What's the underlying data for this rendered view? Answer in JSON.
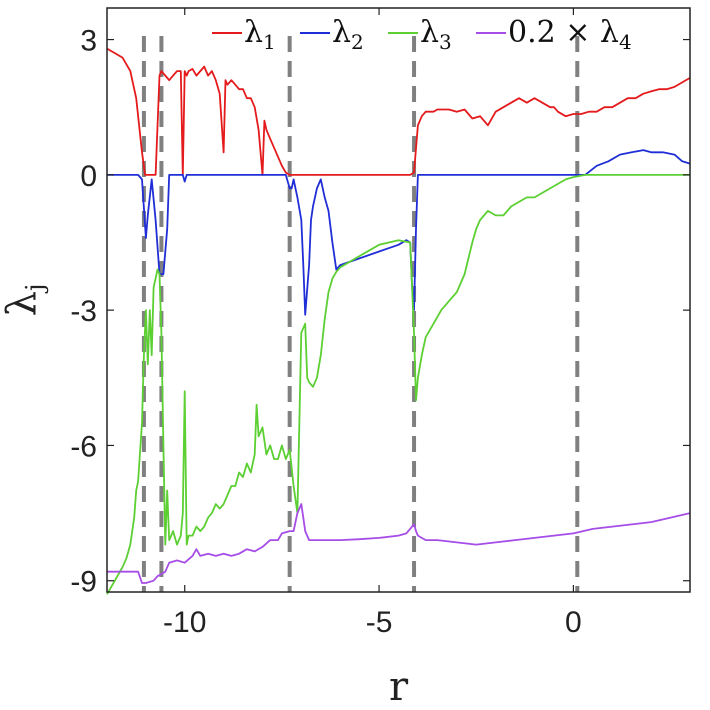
{
  "chart_data": {
    "type": "line",
    "xlabel": "r",
    "ylabel": "λ",
    "ylabel_sub": "j",
    "xlim": [
      -12,
      3
    ],
    "ylim": [
      -9.25,
      3.7
    ],
    "xticks": [
      -10,
      -5,
      0
    ],
    "xtick_labels": [
      "-10",
      "-5",
      "0"
    ],
    "yticks": [
      3,
      0,
      -3,
      -6,
      -9
    ],
    "ytick_labels": [
      "3",
      "0",
      "-3",
      "-6",
      "-9"
    ],
    "grid": false,
    "legend_position": "top",
    "vlines": [
      -11.05,
      -10.6,
      -7.3,
      -4.1,
      0.1
    ],
    "series": [
      {
        "name": "λ",
        "name_sub": "1",
        "name_prefix": "",
        "color": "#e41a1c",
        "x": [
          -12,
          -11.8,
          -11.6,
          -11.4,
          -11.25,
          -11.1,
          -11.02,
          -10.9,
          -10.75,
          -10.65,
          -10.6,
          -10.5,
          -10.4,
          -10.3,
          -10.2,
          -10.1,
          -10.05,
          -10.0,
          -9.95,
          -9.9,
          -9.8,
          -9.7,
          -9.6,
          -9.5,
          -9.4,
          -9.3,
          -9.2,
          -9.1,
          -9.0,
          -8.95,
          -8.9,
          -8.8,
          -8.7,
          -8.6,
          -8.5,
          -8.4,
          -8.3,
          -8.2,
          -8.1,
          -8.0,
          -7.95,
          -7.9,
          -7.8,
          -7.7,
          -7.6,
          -7.5,
          -7.4,
          -7.3,
          -7.25,
          -6,
          -5,
          -4.2,
          -4.1,
          -4.0,
          -3.9,
          -3.8,
          -3.7,
          -3.6,
          -3.5,
          -3.2,
          -3.0,
          -2.8,
          -2.6,
          -2.4,
          -2.2,
          -2.0,
          -1.8,
          -1.6,
          -1.4,
          -1.2,
          -1.0,
          -0.8,
          -0.6,
          -0.5,
          -0.4,
          -0.2,
          0.0,
          0.2,
          0.4,
          0.6,
          0.8,
          1.0,
          1.2,
          1.4,
          1.6,
          1.8,
          2.0,
          2.2,
          2.4,
          2.6,
          2.8,
          3.0
        ],
        "y": [
          2.8,
          2.7,
          2.6,
          2.3,
          1.7,
          0.5,
          0,
          0,
          0,
          2.2,
          2.3,
          2.2,
          2.1,
          2.2,
          2.3,
          2.3,
          0,
          2.3,
          2.2,
          2.3,
          2.35,
          2.2,
          2.3,
          2.4,
          2.2,
          2.3,
          2.1,
          1.8,
          0.5,
          2.1,
          2.0,
          2.1,
          2.0,
          1.9,
          1.9,
          1.7,
          1.7,
          1.5,
          1.0,
          0,
          1.2,
          1.0,
          0.8,
          0.6,
          0.4,
          0.2,
          0.05,
          0,
          0,
          0,
          0,
          0,
          0.05,
          1.1,
          1.3,
          1.4,
          1.4,
          1.4,
          1.45,
          1.45,
          1.4,
          1.45,
          1.25,
          1.3,
          1.1,
          1.4,
          1.5,
          1.6,
          1.7,
          1.6,
          1.7,
          1.6,
          1.5,
          1.5,
          1.4,
          1.3,
          1.35,
          1.35,
          1.4,
          1.4,
          1.5,
          1.5,
          1.6,
          1.7,
          1.7,
          1.8,
          1.85,
          1.9,
          1.9,
          1.95,
          2.05,
          2.15
        ]
      },
      {
        "name": "λ",
        "name_sub": "2",
        "name_prefix": "",
        "color": "#1f2ed6",
        "x": [
          -12,
          -11.2,
          -11.1,
          -11.0,
          -10.95,
          -10.85,
          -10.75,
          -10.65,
          -10.55,
          -10.45,
          -10.4,
          -10.2,
          -10.05,
          -10.0,
          -9.95,
          -9.8,
          -7.6,
          -7.5,
          -7.4,
          -7.3,
          -7.25,
          -7.2,
          -7.1,
          -7.0,
          -6.95,
          -6.9,
          -6.8,
          -6.75,
          -6.7,
          -6.6,
          -6.5,
          -6.4,
          -6.3,
          -6.2,
          -6.1,
          -6.0,
          -5.0,
          -4.5,
          -4.3,
          -4.2,
          -4.15,
          -4.1,
          -4.05,
          -4.0,
          0.0,
          0.3,
          0.6,
          0.9,
          1.2,
          1.5,
          1.8,
          2.0,
          2.3,
          2.6,
          2.8,
          3.0
        ],
        "y": [
          0,
          0,
          -0.1,
          -1.4,
          -0.9,
          -0.1,
          -1.0,
          -2.2,
          -2.2,
          -1.2,
          0,
          0,
          0,
          -0.15,
          0,
          0,
          0,
          0,
          0,
          -0.3,
          -0.3,
          -0.1,
          -0.5,
          -1.0,
          -2.0,
          -3.1,
          -2.0,
          -1.0,
          -0.7,
          -0.3,
          -0.1,
          -0.5,
          -0.8,
          -1.5,
          -2.1,
          -2.0,
          -1.7,
          -1.55,
          -1.45,
          -1.5,
          -2.5,
          -3.0,
          -1.2,
          0,
          0,
          0,
          0.2,
          0.3,
          0.45,
          0.5,
          0.55,
          0.5,
          0.5,
          0.45,
          0.3,
          0.25
        ]
      },
      {
        "name": "λ",
        "name_sub": "3",
        "name_prefix": "",
        "color": "#5ccf32",
        "x": [
          -12.0,
          -11.8,
          -11.6,
          -11.5,
          -11.4,
          -11.3,
          -11.25,
          -11.2,
          -11.1,
          -11.05,
          -11.0,
          -10.95,
          -10.9,
          -10.85,
          -10.8,
          -10.7,
          -10.65,
          -10.6,
          -10.55,
          -10.5,
          -10.45,
          -10.4,
          -10.3,
          -10.2,
          -10.1,
          -10.05,
          -10.0,
          -9.95,
          -9.9,
          -9.8,
          -9.7,
          -9.6,
          -9.5,
          -9.4,
          -9.3,
          -9.2,
          -9.1,
          -9.0,
          -8.9,
          -8.8,
          -8.7,
          -8.6,
          -8.5,
          -8.4,
          -8.3,
          -8.2,
          -8.15,
          -8.1,
          -8.0,
          -7.9,
          -7.8,
          -7.7,
          -7.6,
          -7.5,
          -7.4,
          -7.3,
          -7.2,
          -7.1,
          -7.0,
          -6.9,
          -6.85,
          -6.8,
          -6.7,
          -6.6,
          -6.5,
          -6.4,
          -6.3,
          -6.2,
          -6.1,
          -6.0,
          -5.5,
          -5.0,
          -4.5,
          -4.2,
          -4.15,
          -4.1,
          -4.05,
          -4.0,
          -3.9,
          -3.8,
          -3.6,
          -3.4,
          -3.2,
          -3.0,
          -2.8,
          -2.6,
          -2.5,
          -2.4,
          -2.2,
          -2.0,
          -1.8,
          -1.6,
          -1.4,
          -1.2,
          -1.0,
          -0.8,
          -0.6,
          -0.4,
          -0.2,
          0.0,
          0.3,
          0.6,
          0.9,
          1.5,
          2.0,
          2.5,
          3.0
        ],
        "y": [
          -9.3,
          -9.0,
          -8.7,
          -8.5,
          -8.2,
          -7.6,
          -7.0,
          -6.8,
          -5.5,
          -4.0,
          -3.0,
          -4.2,
          -3.0,
          -4.0,
          -2.5,
          -2.1,
          -2.2,
          -3.5,
          -6.0,
          -8.2,
          -7.0,
          -8.1,
          -7.9,
          -8.2,
          -8.0,
          -7.5,
          -4.8,
          -8.2,
          -8.0,
          -8.0,
          -7.8,
          -7.9,
          -7.8,
          -7.6,
          -7.5,
          -7.3,
          -7.4,
          -7.3,
          -7.1,
          -6.9,
          -6.9,
          -6.6,
          -6.7,
          -6.4,
          -6.6,
          -6.2,
          -5.1,
          -5.8,
          -5.6,
          -6.2,
          -6.0,
          -6.3,
          -6.3,
          -6.0,
          -6.3,
          -6.1,
          -6.9,
          -7.5,
          -3.5,
          -3.3,
          -4.5,
          -4.6,
          -4.7,
          -4.5,
          -4.0,
          -3.2,
          -2.6,
          -2.3,
          -2.15,
          -2.05,
          -1.8,
          -1.55,
          -1.45,
          -1.5,
          -2.5,
          -3.5,
          -5.0,
          -4.5,
          -4.0,
          -3.6,
          -3.3,
          -3.0,
          -2.8,
          -2.6,
          -2.2,
          -1.5,
          -1.2,
          -1.0,
          -0.8,
          -0.9,
          -0.9,
          -0.7,
          -0.6,
          -0.5,
          -0.5,
          -0.4,
          -0.3,
          -0.2,
          -0.1,
          -0.05,
          0,
          0,
          0,
          0,
          0,
          0,
          0
        ]
      },
      {
        "name": "λ",
        "name_sub": "4",
        "name_prefix": "0.2 × ",
        "color": "#a64de8",
        "x": [
          -12.0,
          -11.5,
          -11.2,
          -11.1,
          -11.0,
          -10.8,
          -10.7,
          -10.6,
          -10.5,
          -10.4,
          -10.2,
          -10.0,
          -9.8,
          -9.7,
          -9.6,
          -9.4,
          -9.2,
          -9.0,
          -8.8,
          -8.6,
          -8.4,
          -8.2,
          -8.0,
          -7.8,
          -7.6,
          -7.5,
          -7.3,
          -7.2,
          -7.1,
          -7.0,
          -6.95,
          -6.9,
          -6.8,
          -6.6,
          -6.4,
          -6.0,
          -5.5,
          -5.0,
          -4.5,
          -4.3,
          -4.15,
          -4.1,
          -4.05,
          -4.0,
          -3.8,
          -3.5,
          -3.0,
          -2.5,
          -2.0,
          -1.5,
          -1.0,
          -0.5,
          0.0,
          0.5,
          1.0,
          1.5,
          2.0,
          2.5,
          3.0
        ],
        "y": [
          -8.8,
          -8.8,
          -8.8,
          -9.05,
          -9.05,
          -9.0,
          -8.9,
          -8.85,
          -8.8,
          -8.6,
          -8.55,
          -8.6,
          -8.45,
          -8.3,
          -8.45,
          -8.4,
          -8.45,
          -8.4,
          -8.45,
          -8.4,
          -8.3,
          -8.35,
          -8.25,
          -8.1,
          -8.1,
          -7.95,
          -7.9,
          -7.9,
          -7.5,
          -7.3,
          -7.6,
          -7.9,
          -8.1,
          -8.1,
          -8.1,
          -8.1,
          -8.08,
          -8.05,
          -8.0,
          -7.95,
          -7.8,
          -7.75,
          -7.9,
          -8.0,
          -8.1,
          -8.1,
          -8.15,
          -8.2,
          -8.15,
          -8.1,
          -8.05,
          -8.0,
          -7.95,
          -7.85,
          -7.8,
          -7.75,
          -7.7,
          -7.6,
          -7.5
        ]
      }
    ]
  }
}
